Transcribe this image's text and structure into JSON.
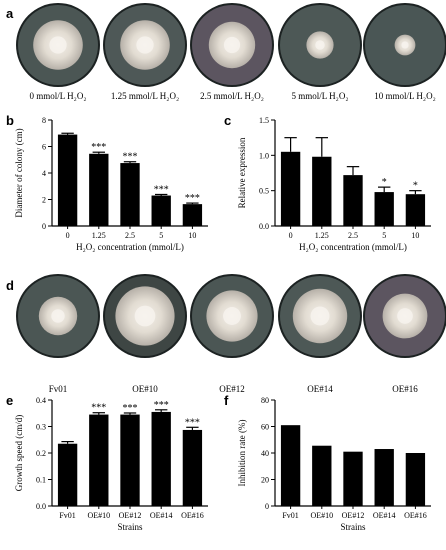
{
  "panels": {
    "a": {
      "letter": "a",
      "dishes": [
        {
          "label": "0 mmol/L H₂O₂",
          "colony": 0.62,
          "plate": "#4b5654"
        },
        {
          "label": "1.25 mmol/L H₂O₂",
          "colony": 0.62,
          "plate": "#4e5857"
        },
        {
          "label": "2.5 mmol/L H₂O₂",
          "colony": 0.58,
          "plate": "#5c5560"
        },
        {
          "label": "5 mmol/L H₂O₂",
          "colony": 0.34,
          "plate": "#4d5856"
        },
        {
          "label": "10 mmol/L H₂O₂",
          "colony": 0.26,
          "plate": "#4a5655"
        }
      ]
    },
    "d": {
      "letter": "d",
      "dishes": [
        {
          "label": "Fv01",
          "colony": 0.48,
          "plate": "#4b5654"
        },
        {
          "label": "OE#10",
          "colony": 0.74,
          "plate": "#3e4644"
        },
        {
          "label": "OE#12",
          "colony": 0.64,
          "plate": "#4b5654"
        },
        {
          "label": "OE#14",
          "colony": 0.68,
          "plate": "#4d5856"
        },
        {
          "label": "OE#16",
          "colony": 0.56,
          "plate": "#5c5560"
        }
      ]
    }
  },
  "chart_data": [
    {
      "id": "b",
      "letter": "b",
      "type": "bar",
      "categories": [
        "0",
        "1.25",
        "2.5",
        "5",
        "10"
      ],
      "values": [
        6.9,
        5.45,
        4.75,
        2.3,
        1.65
      ],
      "errors": [
        0.1,
        0.12,
        0.1,
        0.08,
        0.08
      ],
      "signif": [
        "",
        "***",
        "***",
        "***",
        "***"
      ],
      "xlabel": "H₂O₂ concentration (mmol/L)",
      "ylabel": "Diameter of colony (cm)",
      "ylim": [
        0,
        8
      ],
      "yticks": [
        "0",
        "2",
        "4",
        "6",
        "8"
      ],
      "ystep": 2
    },
    {
      "id": "c",
      "letter": "c",
      "type": "bar",
      "categories": [
        "0",
        "1.25",
        "2.5",
        "5",
        "10"
      ],
      "values": [
        1.05,
        0.98,
        0.72,
        0.48,
        0.45
      ],
      "errors": [
        0.2,
        0.27,
        0.12,
        0.07,
        0.05
      ],
      "signif": [
        "",
        "",
        "",
        "*",
        "*"
      ],
      "xlabel": "H₂O₂ concentration (mmol/L)",
      "ylabel": "Relative expression",
      "ylim": [
        0,
        1.5
      ],
      "yticks": [
        "0.0",
        "0.5",
        "1.0",
        "1.5"
      ],
      "ystep": 0.5
    },
    {
      "id": "e",
      "letter": "e",
      "type": "bar",
      "categories": [
        "Fv01",
        "OE#10",
        "OE#12",
        "OE#14",
        "OE#16"
      ],
      "values": [
        0.235,
        0.345,
        0.345,
        0.355,
        0.287
      ],
      "errors": [
        0.008,
        0.007,
        0.006,
        0.008,
        0.01
      ],
      "signif": [
        "",
        "***",
        "***",
        "***",
        "***"
      ],
      "xlabel": "Strains",
      "ylabel": "Growth speed (cm/d)",
      "ylim": [
        0,
        0.4
      ],
      "yticks": [
        "0.0",
        "0.1",
        "0.2",
        "0.3",
        "0.4"
      ],
      "ystep": 0.1
    },
    {
      "id": "f",
      "letter": "f",
      "type": "bar",
      "categories": [
        "Fv01",
        "OE#10",
        "OE#12",
        "OE#14",
        "OE#16"
      ],
      "values": [
        61,
        45.5,
        41,
        43,
        40
      ],
      "errors": [
        0,
        0,
        0,
        0,
        0
      ],
      "signif": [
        "",
        "",
        "",
        "",
        ""
      ],
      "xlabel": "Strains",
      "ylabel": "Inhibition rate (%)",
      "ylim": [
        0,
        80
      ],
      "yticks": [
        "0",
        "20",
        "40",
        "60",
        "80"
      ],
      "ystep": 20
    }
  ]
}
